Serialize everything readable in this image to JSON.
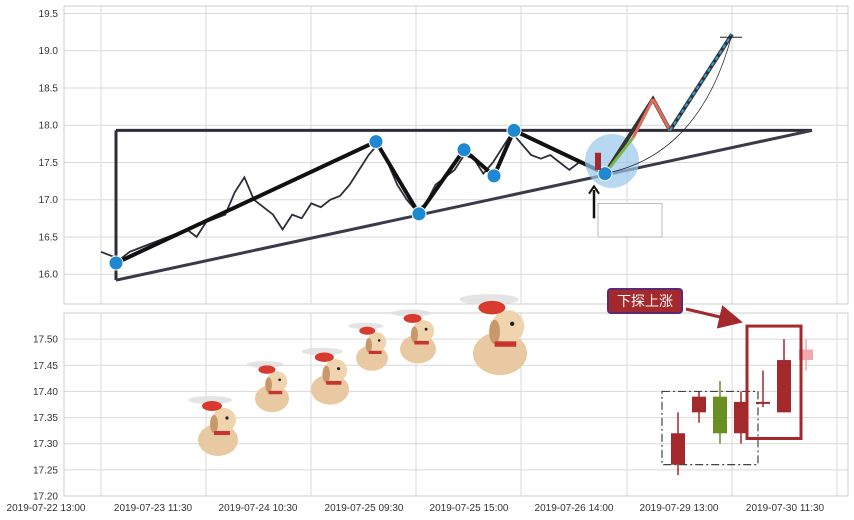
{
  "chart_data": [
    {
      "type": "line",
      "panel": "top",
      "ylim": [
        15.6,
        19.6
      ],
      "yticks": [
        "16.0",
        "16.5",
        "17.0",
        "17.5",
        "18.0",
        "18.5",
        "19.0",
        "19.5"
      ],
      "grid": true,
      "series": [
        {
          "values": [
            16.3,
            16.25,
            16.2,
            16.3,
            16.35,
            16.4,
            16.45,
            16.5,
            16.55,
            16.6,
            16.5,
            16.7,
            16.75,
            16.8,
            17.1,
            17.3,
            17.0,
            16.9,
            16.8,
            16.6,
            16.8,
            16.75,
            16.95,
            16.9,
            17.0,
            17.05,
            17.2,
            17.4,
            17.6,
            17.75,
            17.5,
            17.2,
            17.0,
            16.85,
            16.95,
            17.2,
            17.3,
            17.4,
            17.6,
            17.55,
            17.35,
            17.5,
            17.7,
            17.9,
            17.75,
            17.6,
            17.55,
            17.6,
            17.5,
            17.4,
            17.5,
            17.45,
            17.4
          ]
        }
      ],
      "pattern_points": [
        {
          "i": 0,
          "y": 16.15
        },
        {
          "i": 8,
          "y": 17.78
        },
        {
          "i": 15,
          "y": 16.81
        },
        {
          "i": 19,
          "y": 17.67
        },
        {
          "i": 23,
          "y": 17.32
        },
        {
          "i": 25,
          "y": 17.93
        },
        {
          "i": 33,
          "y": 17.35
        }
      ],
      "resistance": 17.93,
      "support_start": 15.92,
      "support_end": 17.93,
      "projection": [
        17.35,
        17.93,
        18.35,
        17.93,
        19.22
      ]
    },
    {
      "type": "candlestick",
      "panel": "bottom",
      "ylim": [
        17.2,
        17.55
      ],
      "yticks": [
        "17.20",
        "17.25",
        "17.30",
        "17.35",
        "17.40",
        "17.45",
        "17.50"
      ],
      "x_tick_labels": [
        "2019-07-22 13:00",
        "2019-07-23 11:30",
        "2019-07-24 10:30",
        "2019-07-25 09:30",
        "2019-07-25 15:00",
        "2019-07-26 14:00",
        "2019-07-29 13:00",
        "2019-07-30 11:30"
      ],
      "candles": [
        {
          "open": 17.32,
          "close": 17.26,
          "high": 17.36,
          "low": 17.24,
          "color": "#a3292d"
        },
        {
          "open": 17.39,
          "close": 17.36,
          "high": 17.4,
          "low": 17.34,
          "color": "#a3292d"
        },
        {
          "open": 17.32,
          "close": 17.39,
          "high": 17.42,
          "low": 17.3,
          "color": "#6b8e23"
        },
        {
          "open": 17.38,
          "close": 17.32,
          "high": 17.4,
          "low": 17.3,
          "color": "#a3292d"
        },
        {
          "open": 17.38,
          "close": 17.38,
          "high": 17.44,
          "low": 17.37,
          "color": "#a3292d"
        },
        {
          "open": 17.46,
          "close": 17.36,
          "high": 17.5,
          "low": 17.36,
          "color": "#a3292d"
        },
        {
          "open": 17.48,
          "close": 17.46,
          "high": 17.5,
          "low": 17.44,
          "color": "#f4a6ad"
        }
      ],
      "callout": "下探上涨",
      "colors": {
        "bear": "#a3292d",
        "bull": "#6b8e23",
        "faded": "#f4a6ad",
        "callout_bg": "#a3292d",
        "callout_border": "#5a2a7a",
        "marker": "#1e88d2"
      }
    }
  ]
}
